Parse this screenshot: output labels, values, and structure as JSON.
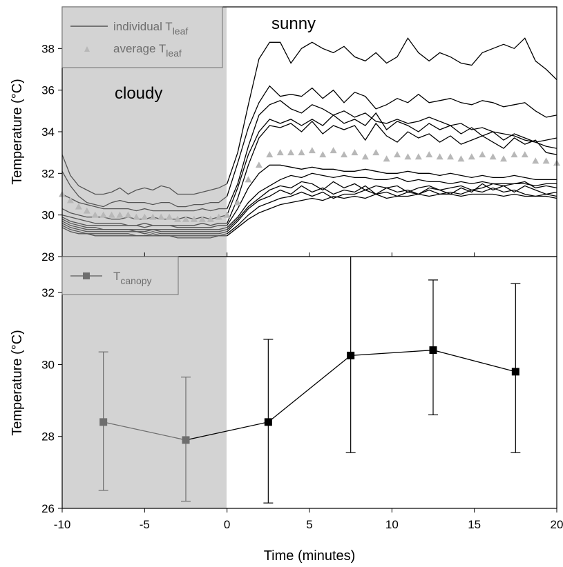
{
  "chart_data": [
    {
      "type": "line",
      "panel": "top",
      "xlabel": "Time (minutes)",
      "ylabel": "Temperature (°C)",
      "xlim": [
        -10,
        20
      ],
      "ylim": [
        28,
        40
      ],
      "x_ticks": [
        -10,
        -5,
        0,
        5,
        10,
        15,
        20
      ],
      "y_ticks": [
        28,
        30,
        32,
        34,
        36,
        38
      ],
      "shaded_region": {
        "x_from": -10,
        "x_to": 0,
        "color": "#d3d3d3"
      },
      "annotations": [
        {
          "text": "cloudy",
          "x": -6.8,
          "y": 35.6
        },
        {
          "text": "sunny",
          "x": 2.9,
          "y": 39.2
        }
      ],
      "legend": {
        "placement": "top-left",
        "entries": [
          {
            "main": "individual T",
            "sub": "leaf",
            "style": "line",
            "color": "#555555"
          },
          {
            "main": "average T",
            "sub": "leaf",
            "style": "triangle",
            "color": "#b8b8b8"
          }
        ]
      },
      "individual_series": [
        {
          "before": [
            32.9,
            31.9,
            31.4,
            31.2,
            31.0,
            31.0,
            31.1,
            31.3,
            31.0,
            31.2,
            31.3,
            31.2,
            31.4,
            31.3,
            31.0,
            31.0,
            31.0,
            31.1,
            31.2,
            31.3,
            31.5
          ],
          "after": [
            31.5,
            33.0,
            35.3,
            37.5,
            38.3,
            38.3,
            37.3,
            38.0,
            38.3,
            38.0,
            37.8,
            38.1,
            37.6,
            37.4,
            37.8,
            37.3,
            37.6,
            38.5,
            37.8,
            37.4,
            37.8,
            37.6,
            37.3,
            37.2,
            37.8,
            38.0,
            38.2,
            38.0,
            38.5,
            37.4,
            37.0,
            36.5
          ]
        },
        {
          "before": [
            32.1,
            31.4,
            30.9,
            30.6,
            30.5,
            30.4,
            30.6,
            30.7,
            30.6,
            30.6,
            30.6,
            30.5,
            30.6,
            30.6,
            30.4,
            30.4,
            30.5,
            30.5,
            30.6,
            30.6,
            30.9
          ],
          "after": [
            30.9,
            32.5,
            34.2,
            35.4,
            36.2,
            35.7,
            35.8,
            35.7,
            36.1,
            35.6,
            36.0,
            35.4,
            35.9,
            35.7,
            35.1,
            35.3,
            35.6,
            35.4,
            35.8,
            35.4,
            35.5,
            35.6,
            35.4,
            35.3,
            35.5,
            35.4,
            35.2,
            35.3,
            35.4,
            35.0,
            34.7,
            34.8
          ]
        },
        {
          "before": [
            31.0,
            30.8,
            30.6,
            30.5,
            30.4,
            30.3,
            30.3,
            30.3,
            30.3,
            30.2,
            30.3,
            30.2,
            30.2,
            30.2,
            30.2,
            30.2,
            30.2,
            30.3,
            30.2,
            30.3,
            30.3
          ],
          "after": [
            30.3,
            31.5,
            33.3,
            34.8,
            35.3,
            35.5,
            35.1,
            34.9,
            35.3,
            35.1,
            34.8,
            35.0,
            34.7,
            34.9,
            34.5,
            34.4,
            34.6,
            34.4,
            34.5,
            34.7,
            34.5,
            34.3,
            34.4,
            34.1,
            34.2,
            34.0,
            33.9,
            33.8,
            33.6,
            33.5,
            33.3,
            33.2
          ]
        },
        {
          "before": [
            30.3,
            30.1,
            30.0,
            29.9,
            29.9,
            29.9,
            29.8,
            29.8,
            29.9,
            29.8,
            29.8,
            29.9,
            29.8,
            29.8,
            29.8,
            29.9,
            29.8,
            29.9,
            29.8,
            29.9,
            30.0
          ],
          "after": [
            30.0,
            31.3,
            32.9,
            34.0,
            34.6,
            34.4,
            34.6,
            34.3,
            34.6,
            34.3,
            34.8,
            34.4,
            34.6,
            34.3,
            34.9,
            34.1,
            34.5,
            34.3,
            34.0,
            34.4,
            34.1,
            34.3,
            33.9,
            34.2,
            33.8,
            34.0,
            33.6,
            33.9,
            33.7,
            33.5,
            33.6,
            33.7
          ]
        },
        {
          "before": [
            30.0,
            29.9,
            29.8,
            29.7,
            29.6,
            29.6,
            29.6,
            29.6,
            29.5,
            29.5,
            29.6,
            29.5,
            29.5,
            29.5,
            29.5,
            29.5,
            29.5,
            29.6,
            29.5,
            29.6,
            29.6
          ],
          "after": [
            29.6,
            30.8,
            32.4,
            33.7,
            34.3,
            34.2,
            34.4,
            34.0,
            34.5,
            33.9,
            34.3,
            34.1,
            34.3,
            33.6,
            34.4,
            33.8,
            33.5,
            34.0,
            33.7,
            33.9,
            33.5,
            33.8,
            33.4,
            33.6,
            33.8,
            33.5,
            33.2,
            33.7,
            33.4,
            33.6,
            33.0,
            32.9
          ]
        },
        {
          "before": [
            29.9,
            29.7,
            29.6,
            29.5,
            29.5,
            29.5,
            29.5,
            29.5,
            29.5,
            29.5,
            29.4,
            29.5,
            29.5,
            29.5,
            29.4,
            29.4,
            29.4,
            29.4,
            29.4,
            29.5,
            29.5
          ],
          "after": [
            29.5,
            30.3,
            31.3,
            32.0,
            32.4,
            32.4,
            32.3,
            32.2,
            32.3,
            32.2,
            32.2,
            32.1,
            32.1,
            32.2,
            32.1,
            32.0,
            32.0,
            32.1,
            32.0,
            32.0,
            31.9,
            32.0,
            31.9,
            31.8,
            31.9,
            31.8,
            31.8,
            31.9,
            31.8,
            31.7,
            31.7,
            31.7
          ]
        },
        {
          "before": [
            29.8,
            29.6,
            29.5,
            29.4,
            29.4,
            29.3,
            29.3,
            29.3,
            29.3,
            29.3,
            29.3,
            29.3,
            29.3,
            29.3,
            29.3,
            29.3,
            29.3,
            29.3,
            29.3,
            29.3,
            29.4
          ],
          "after": [
            29.4,
            29.9,
            30.6,
            31.1,
            31.4,
            31.7,
            31.9,
            31.8,
            32.0,
            31.9,
            31.8,
            31.9,
            31.8,
            31.8,
            31.7,
            31.7,
            31.8,
            31.6,
            31.7,
            31.6,
            31.6,
            31.5,
            31.6,
            31.5,
            31.6,
            31.5,
            31.5,
            31.5,
            31.5,
            31.4,
            31.5,
            31.5
          ]
        },
        {
          "before": [
            29.7,
            29.5,
            29.4,
            29.3,
            29.3,
            29.3,
            29.3,
            29.3,
            29.3,
            29.2,
            29.2,
            29.3,
            29.2,
            29.2,
            29.2,
            29.2,
            29.2,
            29.2,
            29.2,
            29.2,
            29.3
          ],
          "after": [
            29.3,
            29.8,
            30.4,
            30.8,
            31.2,
            31.4,
            31.3,
            31.6,
            31.5,
            31.2,
            31.6,
            31.3,
            31.5,
            31.2,
            31.4,
            31.3,
            31.4,
            31.1,
            31.3,
            31.4,
            31.2,
            31.3,
            31.4,
            31.2,
            31.3,
            31.5,
            31.4,
            31.5,
            31.6,
            31.3,
            31.4,
            31.3
          ]
        },
        {
          "before": [
            29.6,
            29.4,
            29.3,
            29.2,
            29.2,
            29.2,
            29.2,
            29.2,
            29.2,
            29.2,
            29.1,
            29.2,
            29.1,
            29.1,
            29.1,
            29.1,
            29.1,
            29.1,
            29.1,
            29.1,
            29.2
          ],
          "after": [
            29.2,
            29.7,
            30.3,
            30.7,
            30.9,
            31.2,
            31.0,
            31.4,
            31.1,
            31.3,
            31.0,
            31.2,
            31.1,
            31.4,
            31.0,
            31.3,
            31.1,
            31.2,
            31.0,
            31.3,
            31.2,
            31.0,
            31.3,
            31.1,
            31.5,
            31.2,
            31.4,
            31.1,
            31.4,
            31.2,
            31.0,
            31.1
          ]
        },
        {
          "before": [
            29.5,
            29.3,
            29.2,
            29.1,
            29.1,
            29.1,
            29.1,
            29.1,
            29.1,
            29.0,
            29.0,
            29.1,
            29.0,
            29.0,
            29.0,
            29.0,
            29.0,
            29.0,
            29.0,
            29.0,
            29.1
          ],
          "after": [
            29.1,
            29.5,
            30.0,
            30.4,
            30.6,
            30.8,
            30.9,
            31.1,
            30.9,
            31.1,
            30.8,
            31.0,
            31.0,
            31.2,
            31.0,
            31.1,
            30.9,
            31.1,
            31.0,
            31.2,
            31.0,
            31.1,
            31.0,
            31.2,
            31.1,
            31.3,
            31.1,
            31.2,
            31.0,
            30.9,
            31.0,
            30.9
          ]
        },
        {
          "before": [
            29.4,
            29.2,
            29.1,
            29.1,
            29.0,
            29.0,
            29.0,
            29.0,
            29.0,
            29.0,
            29.0,
            29.0,
            29.0,
            29.0,
            28.9,
            28.9,
            28.9,
            28.9,
            28.9,
            29.0,
            29.0
          ],
          "after": [
            29.0,
            29.4,
            29.8,
            30.1,
            30.3,
            30.5,
            30.6,
            30.7,
            30.8,
            30.7,
            30.9,
            30.8,
            30.9,
            30.8,
            31.0,
            30.8,
            30.9,
            30.9,
            31.0,
            30.9,
            31.0,
            31.0,
            30.9,
            31.0,
            31.0,
            31.0,
            30.9,
            31.0,
            30.9,
            30.9,
            30.9,
            30.8
          ]
        }
      ],
      "average_series": {
        "before": [
          31.0,
          30.7,
          30.4,
          30.2,
          30.0,
          30.0,
          30.0,
          30.0,
          30.0,
          29.9,
          29.9,
          29.9,
          29.9,
          29.9,
          29.8,
          29.8,
          29.8,
          29.8,
          29.8,
          29.9,
          30.0
        ],
        "after": [
          30.0,
          30.6,
          31.7,
          32.4,
          32.9,
          33.0,
          33.0,
          33.0,
          33.1,
          32.9,
          33.1,
          32.9,
          33.0,
          32.8,
          33.0,
          32.7,
          32.9,
          32.8,
          32.8,
          32.9,
          32.8,
          32.8,
          32.7,
          32.8,
          32.9,
          32.8,
          32.7,
          32.9,
          32.9,
          32.6,
          32.6,
          32.5
        ]
      }
    },
    {
      "type": "line",
      "panel": "bottom",
      "xlabel": "Time (minutes)",
      "ylabel": "Temperature (°C)",
      "xlim": [
        -10,
        20
      ],
      "ylim": [
        26,
        33
      ],
      "x_ticks": [
        -10,
        -5,
        0,
        5,
        10,
        15,
        20
      ],
      "y_ticks": [
        26,
        28,
        30,
        32
      ],
      "x_tick_labels": [
        "-10",
        "-5",
        "0",
        "5",
        "10",
        "15",
        "20"
      ],
      "shaded_region": {
        "x_from": -10,
        "x_to": 0,
        "color": "#d3d3d3"
      },
      "legend": {
        "placement": "top-left",
        "entries": [
          {
            "main": "T",
            "sub": "canopy",
            "style": "square-line",
            "color": "#6e6e6e"
          }
        ]
      },
      "series": [
        {
          "x": [
            -7.5,
            -2.5,
            2.5,
            7.5,
            12.5,
            17.5
          ],
          "y": [
            28.4,
            27.9,
            28.4,
            30.25,
            30.4,
            29.8
          ],
          "err_low": [
            26.5,
            26.2,
            26.15,
            27.55,
            28.6,
            27.55
          ],
          "err_high": [
            30.35,
            29.65,
            30.7,
            33.2,
            32.35,
            32.25
          ]
        }
      ]
    }
  ]
}
